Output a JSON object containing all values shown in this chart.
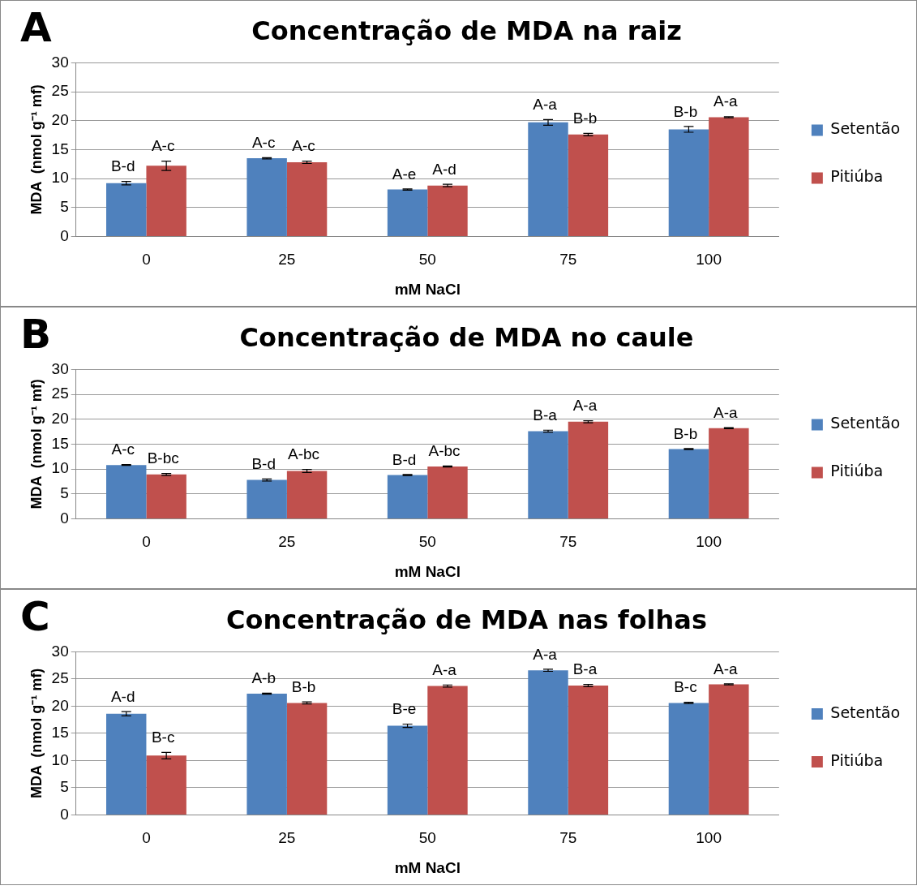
{
  "chart_data": [
    {
      "type": "bar",
      "title": "Concentração de MDA na raiz",
      "xlabel": "mM NaCl",
      "ylabel": "MDA  (nmol g⁻¹ mf)",
      "annotations": [
        "A"
      ],
      "categories": [
        "0",
        "25",
        "50",
        "75",
        "100"
      ],
      "series": [
        {
          "name": "Setentão",
          "color": "#4f81bd",
          "values": [
            9.2,
            13.5,
            8.1,
            19.7,
            18.5
          ],
          "errors": [
            0.3,
            0.1,
            0.1,
            0.5,
            0.5
          ],
          "value_labels": [
            "B-d",
            "A-c",
            "A-e",
            "A-a",
            "B-b"
          ]
        },
        {
          "name": "Pitiúba",
          "color": "#c0504d",
          "values": [
            12.2,
            12.8,
            8.8,
            17.6,
            20.6
          ],
          "errors": [
            0.8,
            0.2,
            0.2,
            0.2,
            0.1
          ],
          "value_labels": [
            "A-c",
            "A-c",
            "A-d",
            "B-b",
            "A-a"
          ]
        }
      ],
      "ylim": [
        0,
        30
      ],
      "yticks": [
        0,
        5,
        10,
        15,
        20,
        25,
        30
      ],
      "grid": "y",
      "legend": "right"
    },
    {
      "type": "bar",
      "title": "Concentração de MDA no caule",
      "xlabel": "mM NaCl",
      "ylabel": "MDA  (nmol g⁻¹ mf)",
      "annotations": [
        "B"
      ],
      "categories": [
        "0",
        "25",
        "50",
        "75",
        "100"
      ],
      "series": [
        {
          "name": "Setentão",
          "color": "#4f81bd",
          "values": [
            10.8,
            7.8,
            8.8,
            17.6,
            14.0
          ],
          "errors": [
            0.1,
            0.2,
            0.1,
            0.2,
            0.1
          ],
          "value_labels": [
            "A-c",
            "B-d",
            "B-d",
            "B-a",
            "B-b"
          ]
        },
        {
          "name": "Pitiúba",
          "color": "#c0504d",
          "values": [
            8.9,
            9.6,
            10.5,
            19.5,
            18.2
          ],
          "errors": [
            0.2,
            0.3,
            0.1,
            0.2,
            0.1
          ],
          "value_labels": [
            "B-bc",
            "A-bc",
            "A-bc",
            "A-a",
            "A-a"
          ]
        }
      ],
      "ylim": [
        0,
        30
      ],
      "yticks": [
        0,
        5,
        10,
        15,
        20,
        25,
        30
      ],
      "grid": "y",
      "legend": "right"
    },
    {
      "type": "bar",
      "title": "Concentração de MDA nas folhas",
      "xlabel": "mM NaCl",
      "ylabel": "MDA  (nmol g⁻¹ mf)",
      "annotations": [
        "C"
      ],
      "categories": [
        "0",
        "25",
        "50",
        "75",
        "100"
      ],
      "series": [
        {
          "name": "Setentão",
          "color": "#4f81bd",
          "values": [
            18.6,
            22.3,
            16.4,
            26.6,
            20.6
          ],
          "errors": [
            0.4,
            0.1,
            0.3,
            0.2,
            0.1
          ],
          "value_labels": [
            "A-d",
            "A-b",
            "B-e",
            "A-a",
            "B-c"
          ]
        },
        {
          "name": "Pitiúba",
          "color": "#c0504d",
          "values": [
            10.9,
            20.6,
            23.7,
            23.8,
            24.0
          ],
          "errors": [
            0.6,
            0.2,
            0.2,
            0.2,
            0.1
          ],
          "value_labels": [
            "B-c",
            "B-b",
            "A-a",
            "B-a",
            "A-a"
          ]
        }
      ],
      "ylim": [
        0,
        30
      ],
      "yticks": [
        0,
        5,
        10,
        15,
        20,
        25,
        30
      ],
      "grid": "y",
      "legend": "right"
    }
  ]
}
